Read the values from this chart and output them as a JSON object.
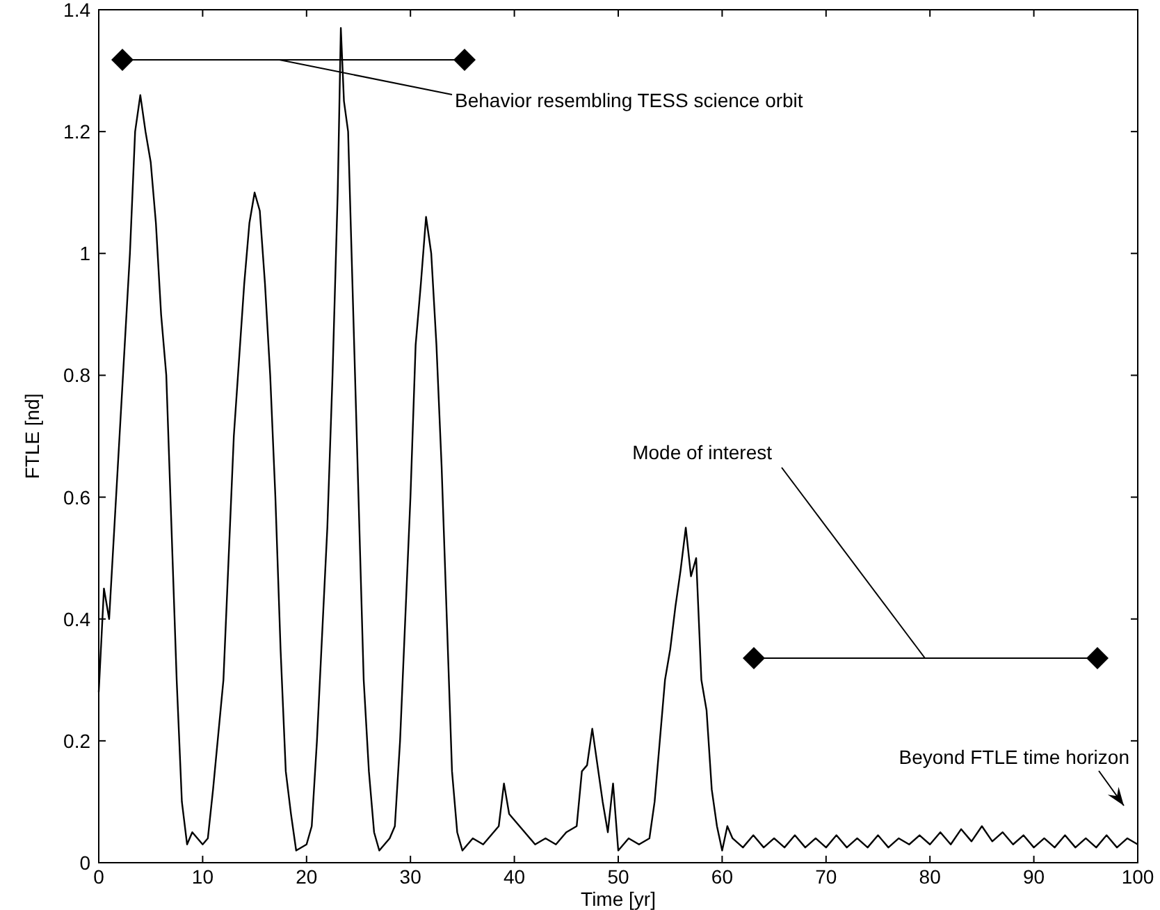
{
  "chart_data": {
    "type": "line",
    "xlabel": "Time [yr]",
    "ylabel": "FTLE [nd]",
    "xlim": [
      0,
      100
    ],
    "xticks": [
      0,
      10,
      20,
      30,
      40,
      50,
      60,
      70,
      80,
      90,
      100
    ],
    "ylim": [
      0,
      1.4
    ],
    "yticks": [
      0,
      0.2,
      0.4,
      0.6,
      0.8,
      1,
      1.2,
      1.4
    ],
    "grid": false,
    "series": [
      {
        "color": "#000000",
        "x": [
          0,
          0.5,
          1,
          2,
          3,
          3.5,
          4,
          4.5,
          5,
          5.5,
          6,
          6.5,
          7,
          7.5,
          8,
          8.5,
          9,
          10,
          10.5,
          11,
          12,
          12.5,
          13,
          14,
          14.5,
          15,
          15.5,
          16,
          16.5,
          17,
          17.5,
          18,
          18.5,
          19,
          20,
          20.5,
          21,
          22,
          22.5,
          23,
          23.3,
          23.6,
          24,
          24.5,
          25,
          25.5,
          26,
          26.5,
          27,
          28,
          28.5,
          29,
          30,
          30.5,
          31,
          31.5,
          32,
          32.5,
          33,
          33.5,
          34,
          34.5,
          35,
          36,
          37,
          38,
          38.5,
          39,
          39.5,
          40,
          41,
          42,
          43,
          44,
          45,
          46,
          46.5,
          47,
          47.5,
          48,
          48.5,
          49,
          49.5,
          50,
          51,
          52,
          53,
          53.5,
          54,
          54.5,
          55,
          55.5,
          56,
          56.5,
          57,
          57.5,
          58,
          58.5,
          59,
          59.5,
          60,
          60.5,
          61,
          62,
          63,
          64,
          65,
          66,
          67,
          68,
          69,
          70,
          71,
          72,
          73,
          74,
          75,
          76,
          77,
          78,
          79,
          80,
          81,
          82,
          83,
          84,
          85,
          86,
          87,
          88,
          89,
          90,
          91,
          92,
          93,
          94,
          95,
          96,
          97,
          98,
          99,
          100
        ],
        "values": [
          0.28,
          0.45,
          0.4,
          0.7,
          1.0,
          1.2,
          1.26,
          1.2,
          1.15,
          1.05,
          0.9,
          0.8,
          0.55,
          0.3,
          0.1,
          0.03,
          0.05,
          0.03,
          0.04,
          0.12,
          0.3,
          0.5,
          0.7,
          0.95,
          1.05,
          1.1,
          1.07,
          0.95,
          0.8,
          0.6,
          0.35,
          0.15,
          0.08,
          0.02,
          0.03,
          0.06,
          0.2,
          0.55,
          0.8,
          1.1,
          1.37,
          1.25,
          1.2,
          0.9,
          0.6,
          0.3,
          0.15,
          0.05,
          0.02,
          0.04,
          0.06,
          0.2,
          0.6,
          0.85,
          0.95,
          1.06,
          1.0,
          0.85,
          0.65,
          0.4,
          0.15,
          0.05,
          0.02,
          0.04,
          0.03,
          0.05,
          0.06,
          0.13,
          0.08,
          0.07,
          0.05,
          0.03,
          0.04,
          0.03,
          0.05,
          0.06,
          0.15,
          0.16,
          0.22,
          0.16,
          0.1,
          0.05,
          0.13,
          0.02,
          0.04,
          0.03,
          0.04,
          0.1,
          0.2,
          0.3,
          0.35,
          0.42,
          0.48,
          0.55,
          0.47,
          0.5,
          0.3,
          0.25,
          0.12,
          0.06,
          0.02,
          0.06,
          0.04,
          0.025,
          0.045,
          0.025,
          0.04,
          0.025,
          0.045,
          0.025,
          0.04,
          0.025,
          0.045,
          0.025,
          0.04,
          0.025,
          0.045,
          0.025,
          0.04,
          0.03,
          0.045,
          0.03,
          0.05,
          0.03,
          0.055,
          0.035,
          0.06,
          0.035,
          0.05,
          0.03,
          0.045,
          0.025,
          0.04,
          0.025,
          0.045,
          0.025,
          0.04,
          0.025,
          0.045,
          0.025,
          0.04,
          0.03
        ]
      }
    ],
    "annotations": [
      "Behavior resembling TESS science orbit",
      "Mode of interest",
      "Beyond FTLE time horizon"
    ]
  }
}
